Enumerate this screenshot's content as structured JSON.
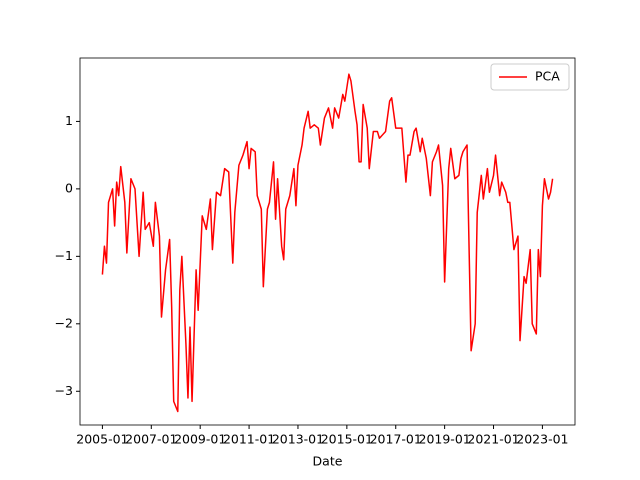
{
  "chart_data": {
    "type": "line",
    "xlabel": "Date",
    "x": [
      "2005-01",
      "2005-02",
      "2005-03",
      "2005-04",
      "2005-06",
      "2005-07",
      "2005-08",
      "2005-09",
      "2005-10",
      "2005-12",
      "2006-01",
      "2006-03",
      "2006-05",
      "2006-07",
      "2006-09",
      "2006-10",
      "2006-12",
      "2007-02",
      "2007-03",
      "2007-05",
      "2007-06",
      "2007-08",
      "2007-10",
      "2007-11",
      "2007-12",
      "2008-02",
      "2008-03",
      "2008-04",
      "2008-06",
      "2008-07",
      "2008-08",
      "2008-09",
      "2008-11",
      "2008-12",
      "2009-02",
      "2009-04",
      "2009-06",
      "2009-07",
      "2009-09",
      "2009-11",
      "2010-01",
      "2010-03",
      "2010-05",
      "2010-06",
      "2010-08",
      "2010-10",
      "2010-12",
      "2011-01",
      "2011-02",
      "2011-04",
      "2011-05",
      "2011-07",
      "2011-08",
      "2011-10",
      "2011-11",
      "2012-01",
      "2012-02",
      "2012-03",
      "2012-05",
      "2012-06",
      "2012-07",
      "2012-09",
      "2012-11",
      "2012-12",
      "2013-01",
      "2013-03",
      "2013-04",
      "2013-06",
      "2013-07",
      "2013-09",
      "2013-11",
      "2013-12",
      "2014-02",
      "2014-04",
      "2014-06",
      "2014-07",
      "2014-09",
      "2014-11",
      "2014-12",
      "2015-02",
      "2015-03",
      "2015-05",
      "2015-06",
      "2015-07",
      "2015-08",
      "2015-09",
      "2015-11",
      "2015-12",
      "2016-02",
      "2016-04",
      "2016-05",
      "2016-08",
      "2016-10",
      "2016-11",
      "2017-01",
      "2017-03",
      "2017-04",
      "2017-06",
      "2017-07",
      "2017-08",
      "2017-10",
      "2017-11",
      "2018-01",
      "2018-02",
      "2018-04",
      "2018-06",
      "2018-07",
      "2018-09",
      "2018-10",
      "2018-12",
      "2019-01",
      "2019-03",
      "2019-04",
      "2019-06",
      "2019-08",
      "2019-09",
      "2019-10",
      "2019-12",
      "2020-02",
      "2020-04",
      "2020-05",
      "2020-07",
      "2020-08",
      "2020-10",
      "2020-11",
      "2021-01",
      "2021-02",
      "2021-04",
      "2021-05",
      "2021-07",
      "2021-08",
      "2021-09",
      "2021-11",
      "2022-01",
      "2022-02",
      "2022-04",
      "2022-05",
      "2022-07",
      "2022-08",
      "2022-10",
      "2022-11",
      "2022-12",
      "2023-01",
      "2023-02",
      "2023-04",
      "2023-05",
      "2023-06"
    ],
    "series": [
      {
        "name": "PCA",
        "color": "#ff0000",
        "values": [
          -1.27,
          -0.85,
          -1.1,
          -0.2,
          0.0,
          -0.55,
          0.1,
          -0.1,
          0.33,
          -0.2,
          -0.95,
          0.15,
          0.0,
          -1.0,
          -0.05,
          -0.6,
          -0.5,
          -0.85,
          -0.2,
          -0.7,
          -1.9,
          -1.2,
          -0.75,
          -1.75,
          -3.15,
          -3.3,
          -1.5,
          -1.0,
          -2.3,
          -3.1,
          -2.05,
          -3.15,
          -1.2,
          -1.8,
          -0.4,
          -0.6,
          -0.15,
          -0.9,
          -0.05,
          -0.1,
          0.3,
          0.25,
          -1.1,
          -0.35,
          0.35,
          0.5,
          0.7,
          0.3,
          0.6,
          0.55,
          -0.1,
          -0.3,
          -1.45,
          -0.3,
          -0.2,
          0.4,
          -0.45,
          0.15,
          -0.85,
          -1.05,
          -0.3,
          -0.1,
          0.3,
          -0.25,
          0.35,
          0.65,
          0.9,
          1.15,
          0.9,
          0.95,
          0.9,
          0.65,
          1.05,
          1.2,
          0.9,
          1.2,
          1.05,
          1.4,
          1.3,
          1.7,
          1.6,
          1.15,
          0.95,
          0.4,
          0.4,
          1.25,
          0.9,
          0.3,
          0.85,
          0.85,
          0.75,
          0.85,
          1.3,
          1.35,
          0.9,
          0.9,
          0.9,
          0.1,
          0.5,
          0.5,
          0.85,
          0.9,
          0.55,
          0.75,
          0.45,
          -0.1,
          0.4,
          0.55,
          0.65,
          0.05,
          -1.38,
          0.3,
          0.6,
          0.15,
          0.2,
          0.45,
          0.55,
          0.65,
          -2.4,
          -2.0,
          -0.35,
          0.2,
          -0.15,
          0.3,
          -0.05,
          0.2,
          0.5,
          -0.1,
          0.1,
          -0.05,
          -0.2,
          -0.2,
          -0.9,
          -0.7,
          -2.25,
          -1.3,
          -1.4,
          -0.9,
          -2.0,
          -2.15,
          -0.9,
          -1.3,
          -0.25,
          0.15,
          -0.15,
          -0.05,
          0.15
        ]
      }
    ],
    "xlim": [
      "2004-02",
      "2024-05"
    ],
    "xticks": [
      "2005-01",
      "2007-01",
      "2009-01",
      "2011-01",
      "2013-01",
      "2015-01",
      "2017-01",
      "2019-01",
      "2021-01",
      "2023-01"
    ],
    "ylim": [
      -3.5,
      1.94
    ],
    "yticks": [
      {
        "value": -3,
        "label": "−3"
      },
      {
        "value": -2,
        "label": "−2"
      },
      {
        "value": -1,
        "label": "−1"
      },
      0,
      1
    ],
    "legend": "upper right"
  }
}
